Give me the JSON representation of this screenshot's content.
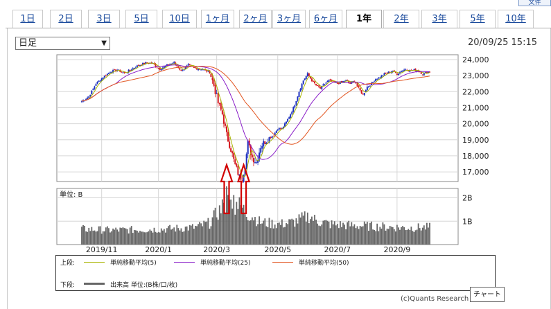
{
  "tabs": [
    {
      "label": "1日",
      "active": false
    },
    {
      "label": "2日",
      "active": false
    },
    {
      "label": "3日",
      "active": false
    },
    {
      "label": "5日",
      "active": false
    },
    {
      "label": "10日",
      "active": false
    },
    {
      "label": "1ヶ月",
      "active": false
    },
    {
      "label": "2ヶ月",
      "active": false
    },
    {
      "label": "3ヶ月",
      "active": false
    },
    {
      "label": "6ヶ月",
      "active": false
    },
    {
      "label": "1年",
      "active": true
    },
    {
      "label": "2年",
      "active": false
    },
    {
      "label": "3年",
      "active": false
    },
    {
      "label": "5年",
      "active": false
    },
    {
      "label": "10年",
      "active": false
    }
  ],
  "topright_label": "文件",
  "period_select": {
    "value": "日足"
  },
  "timestamp": "20/09/25 15:15",
  "volume_unit_label": "単位: B",
  "legend": {
    "upper_label": "上段:",
    "lower_label": "下段:",
    "ma5": "単純移動平均(5)",
    "ma25": "単純移動平均(25)",
    "ma50": "単純移動平均(50)",
    "volume": "出来高 単位:(B株/口/枚)"
  },
  "colors": {
    "ma5": "#a8b400",
    "ma25": "#8a1ec8",
    "ma50": "#e2541f",
    "up": "#1b2fbf",
    "down": "#d4181e",
    "volume": "#666666",
    "arrow": "#d10000"
  },
  "copyright": "(c)Quants Research",
  "tooltip": "チャート",
  "chart_data": {
    "type": "candlestick",
    "price_axis": {
      "ylim": [
        16400,
        24300
      ],
      "ticks": [
        17000,
        18000,
        19000,
        20000,
        21000,
        22000,
        23000,
        24000
      ],
      "tick_labels": [
        "17,000",
        "18,000",
        "19,000",
        "20,000",
        "21,000",
        "22,000",
        "23,000",
        "24,000"
      ]
    },
    "volume_axis": {
      "ylim": [
        0,
        2.4
      ],
      "ticks": [
        1,
        2
      ],
      "tick_labels": [
        "1B",
        "2B"
      ]
    },
    "x_tick_labels": [
      "2019/11",
      "2020/1",
      "2020/3",
      "2020/5",
      "2020/7",
      "2020/9"
    ],
    "x_tick_index": [
      14,
      54,
      95,
      138,
      180,
      222
    ],
    "close_anchors": [
      [
        0,
        21400
      ],
      [
        5,
        21700
      ],
      [
        10,
        22500
      ],
      [
        15,
        22900
      ],
      [
        20,
        23250
      ],
      [
        25,
        23350
      ],
      [
        30,
        23150
      ],
      [
        35,
        23400
      ],
      [
        40,
        23650
      ],
      [
        45,
        23800
      ],
      [
        50,
        23750
      ],
      [
        55,
        23400
      ],
      [
        60,
        23650
      ],
      [
        65,
        23800
      ],
      [
        70,
        23300
      ],
      [
        75,
        23650
      ],
      [
        80,
        23450
      ],
      [
        85,
        23400
      ],
      [
        90,
        23200
      ],
      [
        93,
        22400
      ],
      [
        96,
        21300
      ],
      [
        99,
        20600
      ],
      [
        102,
        19300
      ],
      [
        105,
        18400
      ],
      [
        108,
        17400
      ],
      [
        111,
        16700
      ],
      [
        113,
        16600
      ],
      [
        115,
        17400
      ],
      [
        117,
        18800
      ],
      [
        120,
        17900
      ],
      [
        123,
        17600
      ],
      [
        126,
        18600
      ],
      [
        129,
        18900
      ],
      [
        132,
        19100
      ],
      [
        135,
        19300
      ],
      [
        138,
        19700
      ],
      [
        141,
        19700
      ],
      [
        144,
        20100
      ],
      [
        147,
        20600
      ],
      [
        150,
        21200
      ],
      [
        153,
        22000
      ],
      [
        156,
        22700
      ],
      [
        159,
        23100
      ],
      [
        162,
        22700
      ],
      [
        165,
        22400
      ],
      [
        168,
        22200
      ],
      [
        171,
        22500
      ],
      [
        174,
        22700
      ],
      [
        177,
        22600
      ],
      [
        180,
        22500
      ],
      [
        183,
        22600
      ],
      [
        186,
        22700
      ],
      [
        189,
        22500
      ],
      [
        192,
        22700
      ],
      [
        195,
        22200
      ],
      [
        198,
        21800
      ],
      [
        201,
        22300
      ],
      [
        204,
        22500
      ],
      [
        207,
        22800
      ],
      [
        210,
        22900
      ],
      [
        213,
        23100
      ],
      [
        216,
        23200
      ],
      [
        219,
        23300
      ],
      [
        222,
        23100
      ],
      [
        225,
        23300
      ],
      [
        228,
        23400
      ],
      [
        231,
        23300
      ],
      [
        234,
        23350
      ],
      [
        237,
        23300
      ],
      [
        240,
        23100
      ],
      [
        243,
        23200
      ],
      [
        245,
        23250
      ]
    ],
    "volume_anchors": [
      [
        0,
        0.65
      ],
      [
        20,
        0.6
      ],
      [
        40,
        0.62
      ],
      [
        60,
        0.65
      ],
      [
        80,
        0.72
      ],
      [
        90,
        0.9
      ],
      [
        95,
        1.3
      ],
      [
        100,
        1.6
      ],
      [
        105,
        1.9
      ],
      [
        108,
        1.7
      ],
      [
        112,
        1.6
      ],
      [
        116,
        1.3
      ],
      [
        120,
        1.2
      ],
      [
        125,
        0.95
      ],
      [
        130,
        0.9
      ],
      [
        140,
        0.85
      ],
      [
        150,
        0.95
      ],
      [
        160,
        1.2
      ],
      [
        165,
        1.0
      ],
      [
        175,
        0.85
      ],
      [
        190,
        0.8
      ],
      [
        210,
        0.75
      ],
      [
        230,
        0.7
      ],
      [
        245,
        0.72
      ]
    ],
    "annotations": [
      {
        "type": "arrow",
        "index": 102
      },
      {
        "type": "arrow",
        "index": 114
      }
    ]
  }
}
